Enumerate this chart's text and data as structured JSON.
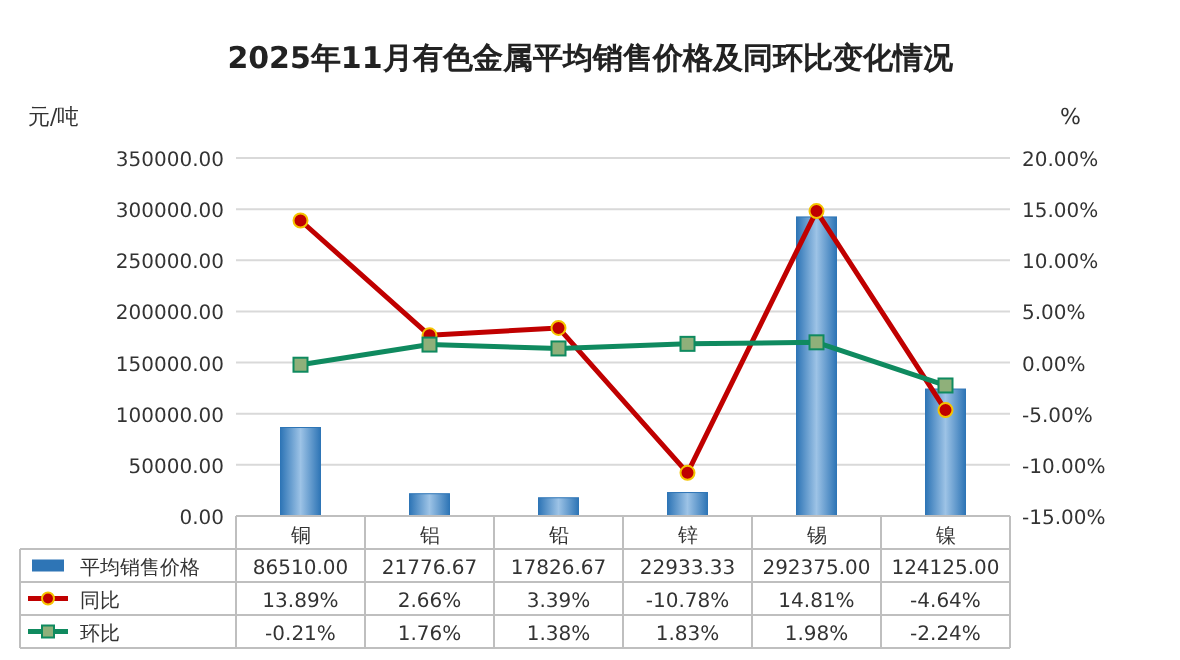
{
  "chart_data": {
    "type": "bar",
    "title": "2025年11月有色金属平均销售价格及同环比变化情况",
    "ylabel": "元/吨",
    "y2label": "%",
    "categories": [
      "铜",
      "铝",
      "铅",
      "锌",
      "锡",
      "镍"
    ],
    "series": [
      {
        "name": "平均销售价格",
        "color": "#2e75b6",
        "values": [
          86510,
          21776.67,
          17826.67,
          22933.33,
          292375,
          124125
        ],
        "value_labels": [
          "86510.00",
          "21776.67",
          "17826.67",
          "22933.33",
          "292375.00",
          "124125.00"
        ]
      },
      {
        "name": "同比",
        "type": "line",
        "axis": "y2",
        "color": "#c00000",
        "marker": "circle",
        "values": [
          13.89,
          2.66,
          3.39,
          -10.78,
          14.81,
          -4.64
        ],
        "value_labels": [
          "13.89%",
          "2.66%",
          "3.39%",
          "-10.78%",
          "14.81%",
          "-4.64%"
        ]
      },
      {
        "name": "环比",
        "type": "line",
        "axis": "y2",
        "color": "#0f8a5f",
        "marker": "square",
        "values": [
          -0.21,
          1.76,
          1.38,
          1.83,
          1.98,
          -2.24
        ],
        "value_labels": [
          "-0.21%",
          "1.76%",
          "1.38%",
          "1.83%",
          "1.98%",
          "-2.24%"
        ]
      }
    ],
    "ylim": [
      0,
      350000
    ],
    "yticks": [
      {
        "value": 0,
        "label": "0.00"
      },
      {
        "value": 50000,
        "label": "50000.00"
      },
      {
        "value": 100000,
        "label": "100000.00"
      },
      {
        "value": 150000,
        "label": "150000.00"
      },
      {
        "value": 200000,
        "label": "200000.00"
      },
      {
        "value": 250000,
        "label": "250000.00"
      },
      {
        "value": 300000,
        "label": "300000.00"
      },
      {
        "value": 350000,
        "label": "350000.00"
      }
    ],
    "y2lim": [
      -15,
      20
    ],
    "y2ticks": [
      {
        "value": -15,
        "label": "-15.00%"
      },
      {
        "value": -10,
        "label": "-10.00%"
      },
      {
        "value": -5,
        "label": "-5.00%"
      },
      {
        "value": 0,
        "label": "0.00%"
      },
      {
        "value": 5,
        "label": "5.00%"
      },
      {
        "value": 10,
        "label": "10.00%"
      },
      {
        "value": 15,
        "label": "15.00%"
      },
      {
        "value": 20,
        "label": "20.00%"
      }
    ],
    "grid": "y",
    "legend": "bottom"
  }
}
